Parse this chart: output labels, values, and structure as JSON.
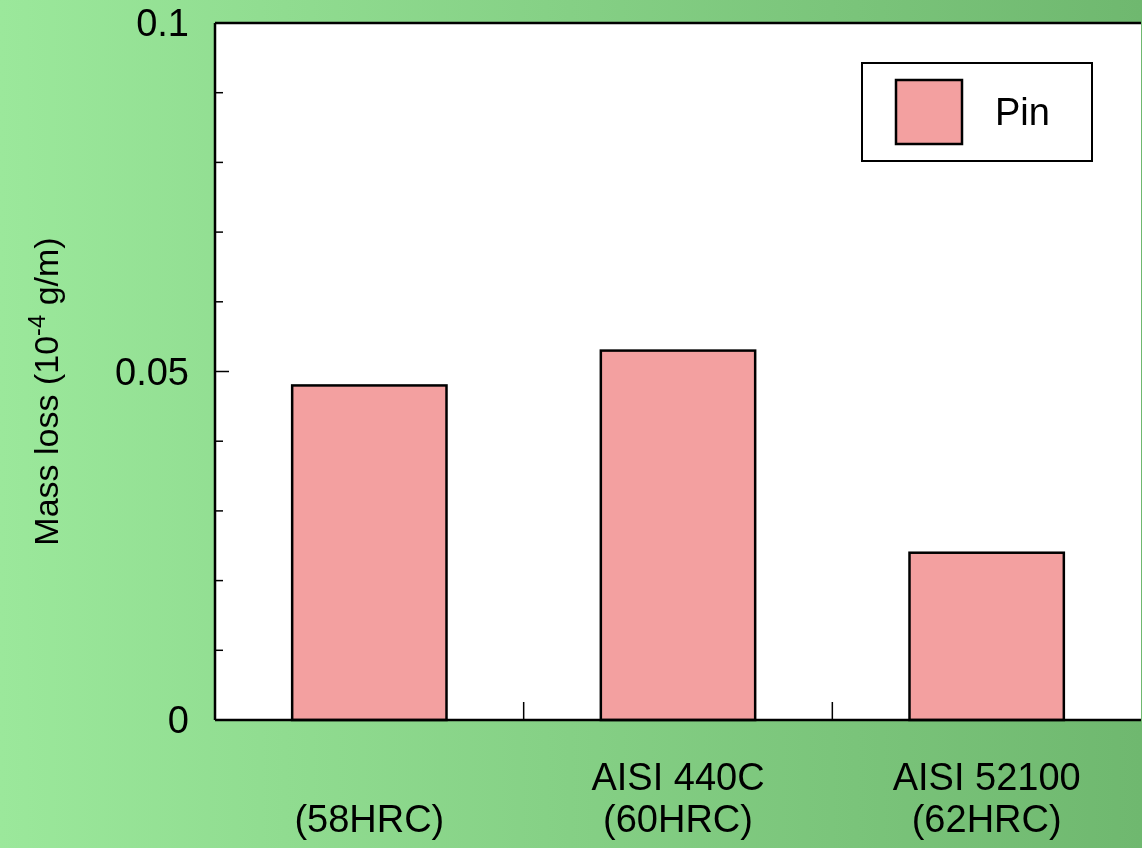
{
  "chart_data": {
    "type": "bar",
    "ylabel": "Mass loss (10$^{-4}$ g/m)",
    "categories": [
      "(58HRC)",
      "AISI 440C\n(60HRC)",
      "AISI 52100\n(62HRC)"
    ],
    "series": [
      {
        "name": "Pin",
        "color": "#f3a0a0",
        "values": [
          0.048,
          0.053,
          0.024
        ]
      }
    ],
    "ylim": [
      0,
      0.1
    ],
    "yticks": [
      0,
      {
        "value": 0.01,
        "label": null
      },
      {
        "value": 0.02,
        "label": null
      },
      {
        "value": 0.03,
        "label": null
      },
      {
        "value": 0.04,
        "label": null
      },
      0.05,
      {
        "value": 0.06,
        "label": null
      },
      {
        "value": 0.07,
        "label": null
      },
      {
        "value": 0.08,
        "label": null
      },
      {
        "value": 0.09,
        "label": null
      },
      0.1
    ],
    "legend": "top right",
    "grid": false
  }
}
